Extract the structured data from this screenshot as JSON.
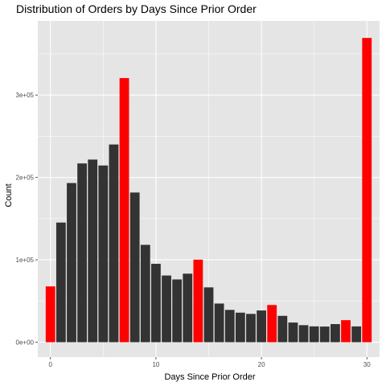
{
  "chart_data": {
    "type": "bar",
    "title": "Distribution of Orders by Days Since Prior Order",
    "xlabel": "Days Since Prior Order",
    "ylabel": "Count",
    "x": [
      0,
      1,
      2,
      3,
      4,
      5,
      6,
      7,
      8,
      9,
      10,
      11,
      12,
      13,
      14,
      15,
      16,
      17,
      18,
      19,
      20,
      21,
      22,
      23,
      24,
      25,
      26,
      27,
      28,
      29,
      30
    ],
    "values": [
      67755,
      145247,
      193206,
      217005,
      221696,
      214503,
      240013,
      320608,
      181717,
      118188,
      95186,
      80970,
      76200,
      83214,
      100230,
      66579,
      46941,
      39245,
      35881,
      34384,
      38527,
      45142,
      32012,
      23885,
      20712,
      19234,
      19016,
      22013,
      26777,
      19191,
      369323
    ],
    "highlight": [
      0,
      7,
      14,
      21,
      28,
      30
    ],
    "colors": {
      "bar": "#333333",
      "highlight": "#ff0000",
      "panel": "#e5e5e5",
      "grid": "#ffffff"
    },
    "xlim": [
      -1.2,
      31.2
    ],
    "ylim": [
      -18000,
      390000
    ],
    "xticks": [
      0,
      10,
      20,
      30
    ],
    "xtick_labels": [
      "0",
      "10",
      "20",
      "30"
    ],
    "yticks": [
      0,
      100000,
      200000,
      300000
    ],
    "ytick_labels": [
      "0e+00",
      "1e+05",
      "2e+05",
      "3e+05"
    ],
    "grid": true,
    "legend": "none"
  }
}
